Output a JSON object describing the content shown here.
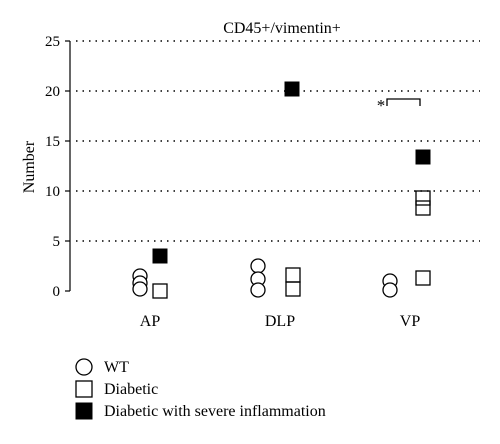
{
  "chart_data": {
    "type": "scatter",
    "title": "CD45+/vimentin+",
    "xlabel": "",
    "ylabel": "Number",
    "categories": [
      "AP",
      "DLP",
      "VP"
    ],
    "ylim": [
      0,
      25
    ],
    "yticks": [
      0,
      5,
      10,
      15,
      20,
      25
    ],
    "grid": "horizontal dotted",
    "legend_position": "bottom-left",
    "series": [
      {
        "name": "WT",
        "marker": "open-circle",
        "points": [
          {
            "category": "AP",
            "y": 1.5
          },
          {
            "category": "AP",
            "y": 0.8
          },
          {
            "category": "AP",
            "y": 0.2
          },
          {
            "category": "DLP",
            "y": 2.5
          },
          {
            "category": "DLP",
            "y": 1.2
          },
          {
            "category": "DLP",
            "y": 0.1
          },
          {
            "category": "VP",
            "y": 1.0
          },
          {
            "category": "VP",
            "y": 0.1
          }
        ]
      },
      {
        "name": "Diabetic",
        "marker": "open-square",
        "points": [
          {
            "category": "AP",
            "y": 0.0
          },
          {
            "category": "DLP",
            "y": 1.6
          },
          {
            "category": "DLP",
            "y": 0.2
          },
          {
            "category": "VP",
            "y": 9.3
          },
          {
            "category": "VP",
            "y": 8.3
          },
          {
            "category": "VP",
            "y": 1.3
          }
        ]
      },
      {
        "name": "Diabetic with severe inflammation",
        "marker": "filled-square",
        "points": [
          {
            "category": "AP",
            "y": 3.5
          },
          {
            "category": "DLP",
            "y": 20.2
          },
          {
            "category": "VP",
            "y": 13.4
          }
        ]
      }
    ],
    "annotations": [
      {
        "text": "*",
        "category": "VP",
        "type": "significance-bracket",
        "y": 19.2
      }
    ]
  }
}
